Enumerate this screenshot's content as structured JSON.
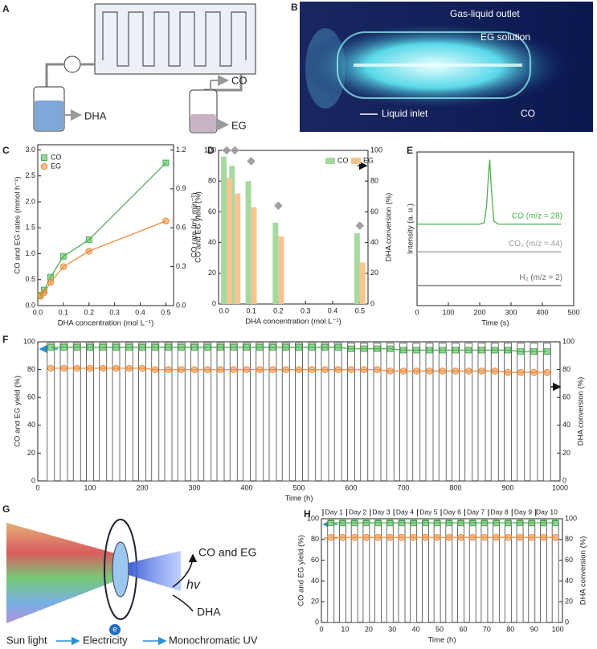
{
  "figure": {
    "A": {
      "label": "A",
      "co": "CO",
      "dha": "DHA",
      "eg": "EG"
    },
    "B": {
      "label": "B",
      "outlet": "Gas-liquid outlet",
      "solution": "EG solution",
      "inlet": "Liquid inlet",
      "co": "CO"
    },
    "G": {
      "label": "G",
      "products": "CO and EG",
      "hv": "hv",
      "dha": "DHA",
      "electron": "e",
      "sun": "Sun light",
      "electricity": "Electricity",
      "uv": "Monochromatic UV"
    }
  },
  "chart_data": [
    {
      "panel": "C",
      "type": "line",
      "x_label": "DHA concentration (mol L⁻¹)",
      "y_label": "CO and EG  rates (mmol h⁻¹)",
      "y2_label": "CO rate (mL min⁻¹)",
      "x": [
        0.01,
        0.025,
        0.05,
        0.1,
        0.2,
        0.5
      ],
      "series": [
        {
          "name": "CO",
          "color": "#4cb050",
          "marker": "square",
          "line": true,
          "values": [
            0.2,
            0.3,
            0.55,
            0.95,
            1.27,
            2.75
          ]
        },
        {
          "name": "EG",
          "color": "#ee8c3a",
          "marker": "circle",
          "line": true,
          "values": [
            0.18,
            0.25,
            0.45,
            0.75,
            1.05,
            1.63
          ]
        }
      ],
      "xlim": [
        0,
        0.53
      ],
      "xticks": [
        {
          "value": 0,
          "label": "0.0"
        },
        0.1,
        0.2,
        0.3,
        0.4,
        0.5
      ],
      "ylim": [
        0,
        3.1
      ],
      "yticks": [
        {
          "value": 0,
          "label": "0.0"
        },
        0.5,
        {
          "value": 1,
          "label": "1.0"
        },
        1.5,
        {
          "value": 2,
          "label": "2.0"
        },
        2.5,
        {
          "value": 3,
          "label": "3.0"
        }
      ],
      "y2lim": [
        0,
        1.24
      ],
      "y2ticks": [
        {
          "value": 0,
          "label": "0.0"
        },
        0.3,
        0.6,
        0.9,
        1.2
      ],
      "legend": "upper left"
    },
    {
      "panel": "D",
      "type": "bar",
      "x_label": "DHA concentration (mol L⁻¹)",
      "y_label": "CO and EG yield  (%)",
      "y2_label": "DHA conversion (%)",
      "x": [
        0.01,
        0.04,
        0.1,
        0.2,
        0.5
      ],
      "series": [
        {
          "name": "CO",
          "color": "#a6d99f",
          "marker": "bar",
          "values": [
            96,
            90,
            80,
            53,
            46
          ]
        },
        {
          "name": "EG",
          "color": "#f7c491",
          "marker": "bar",
          "values": [
            82,
            72,
            63,
            44,
            27
          ]
        },
        {
          "color": "#9a9a9a",
          "marker": "diamond",
          "axis": "y2",
          "values": [
            100,
            100,
            93,
            64,
            51
          ]
        }
      ],
      "xlim": [
        -0.02,
        0.53
      ],
      "xticks": [
        {
          "value": 0,
          "label": "0.0"
        },
        0.1,
        0.2,
        0.3,
        0.4,
        0.5
      ],
      "ylim": [
        0,
        100
      ],
      "yticks": [
        0,
        20,
        40,
        60,
        80,
        100
      ],
      "y2lim": [
        0,
        100
      ],
      "y2ticks": [
        0,
        20,
        40,
        60,
        80,
        100
      ],
      "legend": "upper right"
    },
    {
      "panel": "E",
      "type": "line",
      "x_label": "Time (s)",
      "y_label": "Intensity (a. u.)",
      "x": [
        0,
        200,
        215,
        222,
        228,
        232,
        236,
        245,
        260,
        460
      ],
      "series": [
        {
          "name": "CO (m/z = 28)",
          "color": "#4cb050",
          "line": true,
          "values": [
            5.3,
            5.3,
            5.4,
            6.5,
            8.5,
            9.5,
            8.0,
            5.5,
            5.3,
            5.3
          ]
        },
        {
          "name": "CO₂ (m/z = 44)",
          "color": "#9a9a9a",
          "line": true,
          "values": [
            3.5,
            3.5,
            3.5,
            3.5,
            3.5,
            3.5,
            3.5,
            3.5,
            3.5,
            3.5
          ]
        },
        {
          "name": "H₂ (m/z = 2)",
          "color": "#7a6a6a",
          "line": true,
          "values": [
            1.3,
            1.3,
            1.3,
            1.3,
            1.3,
            1.3,
            1.3,
            1.3,
            1.3,
            1.3
          ]
        }
      ],
      "xlim": [
        0,
        500
      ],
      "xticks": [
        0,
        100,
        200,
        300,
        400,
        500
      ],
      "ylim": [
        0,
        10
      ],
      "series_labels": "inline"
    },
    {
      "panel": "F",
      "type": "bar",
      "x_label": "Time (h)",
      "y_label": "CO and EG yield (%)",
      "y2_label": "DHA conversion (%)",
      "x": [
        25,
        50,
        75,
        100,
        125,
        150,
        175,
        200,
        225,
        250,
        275,
        300,
        325,
        350,
        375,
        400,
        425,
        450,
        475,
        500,
        525,
        550,
        575,
        600,
        625,
        650,
        675,
        700,
        725,
        750,
        775,
        800,
        825,
        850,
        875,
        900,
        925,
        950,
        975
      ],
      "series": [
        {
          "color": "#ffffff",
          "edgecolor": "#444444",
          "marker": "bar",
          "axis": "y2",
          "values": [
            99,
            99,
            99,
            99,
            99,
            99,
            99,
            99,
            99,
            99,
            99,
            99,
            99,
            99,
            99,
            99,
            99,
            99,
            99,
            99,
            99,
            99,
            99,
            99,
            99,
            99,
            99,
            99,
            99,
            99,
            99,
            99,
            99,
            99,
            99,
            99,
            99,
            99,
            99
          ]
        },
        {
          "color": "#4cb050",
          "marker": "square",
          "line": true,
          "values": [
            96,
            96,
            96,
            96,
            96,
            96,
            96,
            96,
            96,
            96,
            96,
            96,
            96,
            96,
            96,
            96,
            96,
            96,
            96,
            96,
            96,
            96,
            96,
            95,
            95,
            95,
            95,
            94,
            94,
            94,
            94,
            94,
            94,
            94,
            94,
            94,
            93,
            93,
            93
          ]
        },
        {
          "color": "#ee8c3a",
          "marker": "circle",
          "line": true,
          "values": [
            81,
            81,
            81,
            81,
            81,
            81,
            81,
            81,
            80,
            80,
            80,
            80,
            80,
            80,
            80,
            80,
            80,
            80,
            80,
            80,
            80,
            80,
            80,
            80,
            80,
            80,
            79,
            79,
            79,
            79,
            79,
            79,
            79,
            79,
            79,
            78,
            78,
            78,
            78
          ]
        }
      ],
      "xlim": [
        0,
        1000
      ],
      "xticks": [
        0,
        100,
        200,
        300,
        400,
        500,
        600,
        700,
        800,
        900,
        1000
      ],
      "ylim": [
        0,
        100
      ],
      "yticks": [
        0,
        20,
        40,
        60,
        80,
        100
      ],
      "y2lim": [
        0,
        100
      ],
      "y2ticks": [
        0,
        20,
        40,
        60,
        80,
        100
      ]
    },
    {
      "panel": "H",
      "type": "bar",
      "x_label": "Time (h)",
      "y_label": "CO and EG yield (%)",
      "y2_label": "DHA conversion (%)",
      "x": [
        4,
        9,
        14,
        19,
        24,
        29,
        34,
        39,
        44,
        49,
        54,
        59,
        64,
        69,
        74,
        79,
        84,
        89,
        94,
        99
      ],
      "series": [
        {
          "color": "#ffffff",
          "edgecolor": "#444444",
          "marker": "bar",
          "axis": "y2",
          "values": [
            98,
            98,
            98,
            98,
            98,
            98,
            98,
            98,
            98,
            98,
            98,
            98,
            98,
            98,
            98,
            98,
            98,
            98,
            98,
            98
          ]
        },
        {
          "color": "#4cb050",
          "marker": "square",
          "line": true,
          "values": [
            96,
            96,
            96,
            96,
            96,
            96,
            96,
            96,
            96,
            96,
            96,
            96,
            96,
            96,
            96,
            96,
            96,
            96,
            96,
            96
          ]
        },
        {
          "color": "#ee8c3a",
          "marker": "circle",
          "line": true,
          "values": [
            82,
            82,
            82,
            82,
            82,
            82,
            82,
            82,
            82,
            82,
            82,
            82,
            82,
            82,
            82,
            82,
            82,
            82,
            82,
            82
          ]
        }
      ],
      "day_labels": [
        "Day 1",
        "Day 2",
        "Day 3",
        "Day 4",
        "Day 5",
        "Day 6",
        "Day 7",
        "Day 8",
        "Day 9",
        "Day 10"
      ],
      "xlim": [
        0,
        102
      ],
      "xticks": [
        0,
        10,
        20,
        30,
        40,
        50,
        60,
        70,
        80,
        90,
        100
      ],
      "ylim": [
        0,
        100
      ],
      "yticks": [
        0,
        20,
        40,
        60,
        80,
        100
      ],
      "y2lim": [
        0,
        100
      ],
      "y2ticks": [
        0,
        20,
        40,
        60,
        80,
        100
      ]
    }
  ]
}
